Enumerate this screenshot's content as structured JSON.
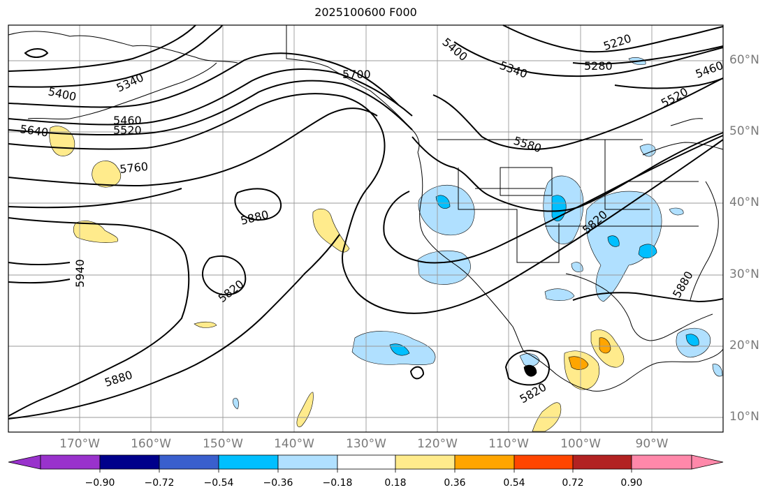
{
  "title": "2025100600 F000",
  "latitude_labels": [
    "60°N",
    "50°N",
    "40°N",
    "30°N",
    "20°N",
    "10°N"
  ],
  "longitude_labels": [
    "170°W",
    "160°W",
    "150°W",
    "140°W",
    "130°W",
    "120°W",
    "110°W",
    "100°W",
    "90°W"
  ],
  "contour_labels": [
    "5220",
    "5400",
    "5340",
    "5280",
    "5460",
    "5400",
    "5340",
    "5460",
    "5520",
    "5640",
    "5700",
    "5580",
    "5520",
    "5760",
    "5880",
    "5820",
    "5940",
    "5820",
    "5880",
    "5820",
    "5880"
  ],
  "colorbar": {
    "ticks": [
      "−0.90",
      "−0.72",
      "−0.54",
      "−0.36",
      "−0.18",
      "0.18",
      "0.36",
      "0.54",
      "0.72",
      "0.90"
    ],
    "colors": [
      "#9932cc",
      "#00008b",
      "#3a5fcd",
      "#00bfff",
      "#b0e0ff",
      "#ffffff",
      "#ffeb8c",
      "#ffa500",
      "#ff4500",
      "#b22222",
      "#ff88aa",
      "#ff88aa"
    ]
  },
  "map_colors": {
    "contour": "#000000",
    "grid": "#999999",
    "light_blue": "#b0e0ff",
    "blue": "#00bfff",
    "yellow": "#ffeb8c",
    "orange": "#ffa500"
  }
}
